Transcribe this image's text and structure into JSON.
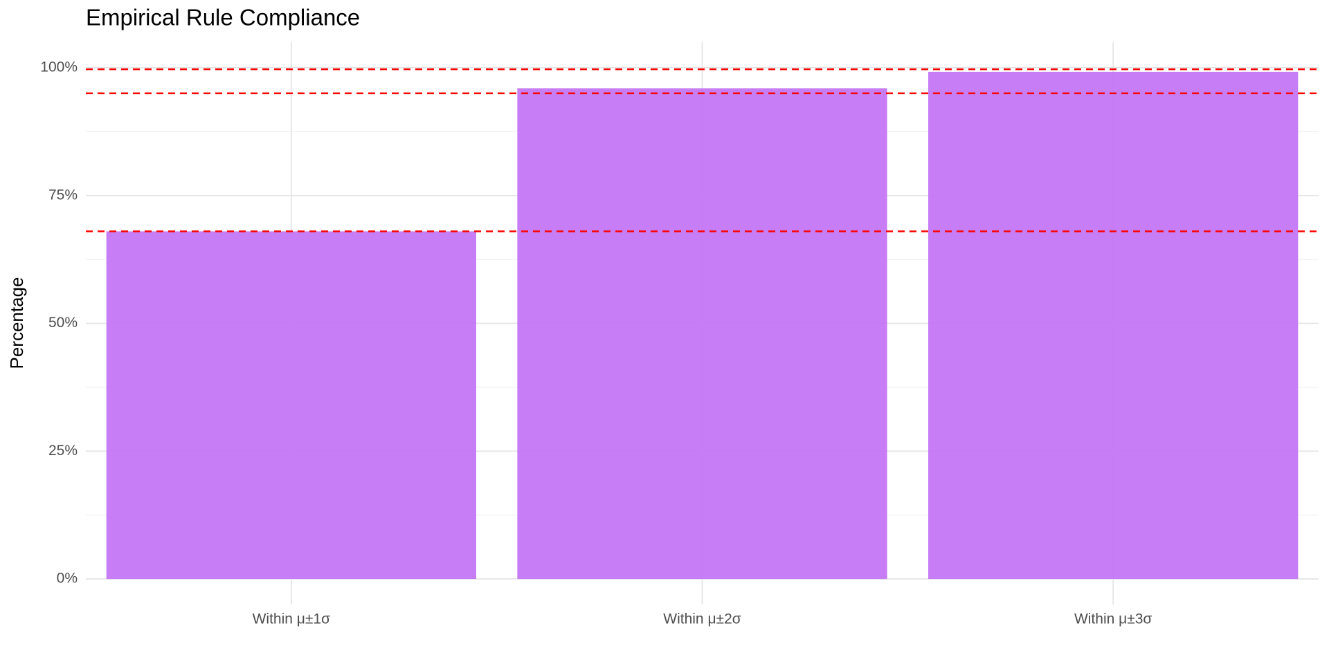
{
  "chart_data": {
    "type": "bar",
    "title": "Empirical Rule Compliance",
    "y_label": "Percentage",
    "categories": [
      "Within μ±1σ",
      "Within μ±2σ",
      "Within μ±3σ"
    ],
    "values": [
      68,
      96,
      99.2
    ],
    "color": "#c476f4",
    "ylim": [
      -5,
      105
    ],
    "yticks": [
      {
        "value": 0,
        "label": "0%"
      },
      {
        "value": 25,
        "label": "25%"
      },
      {
        "value": 50,
        "label": "50%"
      },
      {
        "value": 75,
        "label": "75%"
      },
      {
        "value": 100,
        "label": "100%"
      }
    ],
    "minor_yticks": [
      12.5,
      37.5,
      62.5,
      87.5
    ],
    "reference_lines": [
      68,
      95,
      99.7
    ],
    "reference_color": "#ff0000",
    "grid": true
  }
}
